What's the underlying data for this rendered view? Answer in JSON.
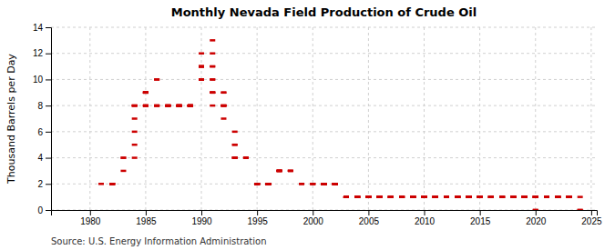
{
  "chart_data": {
    "type": "scatter",
    "title": "Monthly Nevada Field Production of Crude Oil",
    "ylabel": "Thousand Barrels per Day",
    "source": "Source: U.S. Energy Information Administration",
    "color": "#cc0000",
    "marker": "hline",
    "grid": true,
    "xlim": [
      1976.5,
      2025.5
    ],
    "ylim": [
      0,
      14
    ],
    "xticks": [
      1980,
      1985,
      1990,
      1995,
      2000,
      2005,
      2010,
      2015,
      2020,
      2025
    ],
    "yticks": [
      0,
      2,
      4,
      6,
      8,
      10,
      12,
      14
    ],
    "x": [
      1981,
      1982,
      1982,
      1982,
      1982,
      1982,
      1982,
      1983,
      1983,
      1983,
      1984,
      1984,
      1984,
      1984,
      1984,
      1984,
      1984,
      1984,
      1985,
      1985,
      1985,
      1985,
      1985,
      1985,
      1985,
      1985,
      1985,
      1985,
      1985,
      1985,
      1985,
      1986,
      1986,
      1986,
      1986,
      1986,
      1986,
      1986,
      1987,
      1987,
      1987,
      1987,
      1987,
      1987,
      1987,
      1987,
      1988,
      1988,
      1988,
      1988,
      1988,
      1988,
      1988,
      1988,
      1988,
      1988,
      1988,
      1988,
      1989,
      1989,
      1989,
      1989,
      1989,
      1989,
      1989,
      1989,
      1989,
      1989,
      1989,
      1989,
      1990,
      1990,
      1990,
      1990,
      1990,
      1990,
      1990,
      1990,
      1990,
      1990,
      1990,
      1991,
      1991,
      1991,
      1991,
      1991,
      1991,
      1991,
      1991,
      1991,
      1991,
      1991,
      1992,
      1992,
      1992,
      1992,
      1992,
      1992,
      1992,
      1992,
      1993,
      1993,
      1993,
      1993,
      1993,
      1993,
      1993,
      1994,
      1994,
      1994,
      1994,
      1995,
      1995,
      1995,
      1995,
      1995,
      1995,
      1995,
      1995,
      1995,
      1995,
      1995,
      1995,
      1996,
      1996,
      1996,
      1996,
      1996,
      1996,
      1996,
      1996,
      1996,
      1996,
      1996,
      1996,
      1997,
      1997,
      1997,
      1997,
      1997,
      1997,
      1998,
      1998,
      1998,
      1999,
      1999,
      2000,
      2000,
      2000,
      2001,
      2001,
      2001,
      2001,
      2001,
      2001,
      2001,
      2001,
      2001,
      2001,
      2001,
      2001,
      2002,
      2002,
      2002,
      2002,
      2002,
      2002,
      2002,
      2002,
      2002,
      2002,
      2002,
      2002,
      2003,
      2003,
      2003,
      2003,
      2003,
      2003,
      2003,
      2003,
      2003,
      2003,
      2003,
      2003,
      2004,
      2004,
      2004,
      2004,
      2004,
      2004,
      2004,
      2004,
      2004,
      2004,
      2004,
      2004,
      2005,
      2005,
      2005,
      2005,
      2005,
      2005,
      2005,
      2005,
      2005,
      2005,
      2005,
      2005,
      2006,
      2006,
      2006,
      2006,
      2006,
      2006,
      2006,
      2006,
      2006,
      2006,
      2006,
      2006,
      2007,
      2007,
      2007,
      2007,
      2007,
      2007,
      2007,
      2007,
      2007,
      2007,
      2007,
      2007,
      2008,
      2008,
      2008,
      2008,
      2008,
      2008,
      2008,
      2008,
      2008,
      2008,
      2008,
      2008,
      2009,
      2009,
      2009,
      2009,
      2009,
      2009,
      2009,
      2009,
      2009,
      2009,
      2009,
      2009,
      2010,
      2010,
      2010,
      2010,
      2010,
      2010,
      2010,
      2010,
      2010,
      2010,
      2010,
      2010,
      2011,
      2011,
      2011,
      2011,
      2011,
      2011,
      2011,
      2011,
      2011,
      2011,
      2011,
      2011,
      2012,
      2012,
      2012,
      2012,
      2012,
      2012,
      2012,
      2012,
      2012,
      2012,
      2012,
      2012,
      2013,
      2013,
      2013,
      2013,
      2013,
      2013,
      2013,
      2013,
      2013,
      2013,
      2013,
      2013,
      2014,
      2014,
      2014,
      2014,
      2014,
      2014,
      2014,
      2014,
      2014,
      2014,
      2014,
      2014,
      2015,
      2015,
      2015,
      2015,
      2015,
      2015,
      2015,
      2015,
      2015,
      2015,
      2015,
      2015,
      2016,
      2016,
      2016,
      2016,
      2016,
      2016,
      2016,
      2016,
      2016,
      2016,
      2016,
      2016,
      2017,
      2017,
      2017,
      2017,
      2017,
      2017,
      2017,
      2017,
      2017,
      2017,
      2017,
      2017,
      2018,
      2018,
      2018,
      2018,
      2018,
      2018,
      2018,
      2018,
      2018,
      2018,
      2018,
      2018,
      2019,
      2019,
      2019,
      2019,
      2019,
      2019,
      2019,
      2019,
      2019,
      2019,
      2019,
      2019,
      2020,
      2020,
      2020,
      2020,
      2020,
      2020,
      2020,
      2020,
      2020,
      2020,
      2020,
      2021,
      2021,
      2021,
      2021,
      2021,
      2021,
      2021,
      2021,
      2021,
      2021,
      2021,
      2021,
      2022,
      2022,
      2022,
      2022,
      2022,
      2022,
      2022,
      2022,
      2022,
      2022,
      2022,
      2022,
      2023,
      2023,
      2023,
      2023,
      2023,
      2023,
      2023,
      2023,
      2023,
      2023,
      2023,
      2023,
      2024,
      2024,
      2024
    ],
    "values": [
      2,
      2,
      2,
      2,
      2,
      2,
      2,
      4,
      3,
      4,
      8,
      8,
      8,
      8,
      7,
      6,
      5,
      4,
      9,
      9,
      9,
      9,
      9,
      9,
      9,
      8,
      8,
      8,
      8,
      8,
      8,
      8,
      8,
      8,
      8,
      8,
      10,
      10,
      8,
      8,
      8,
      8,
      8,
      8,
      8,
      8,
      8,
      8,
      8,
      8,
      8,
      8,
      8,
      8,
      8,
      8,
      8,
      8,
      8,
      8,
      8,
      8,
      8,
      8,
      8,
      8,
      8,
      8,
      8,
      8,
      10,
      10,
      11,
      11,
      12,
      11,
      11,
      11,
      11,
      10,
      10,
      11,
      13,
      12,
      11,
      10,
      10,
      9,
      9,
      9,
      8,
      9,
      8,
      8,
      9,
      9,
      8,
      8,
      8,
      7,
      6,
      5,
      5,
      4,
      4,
      4,
      4,
      4,
      4,
      4,
      4,
      2,
      2,
      2,
      2,
      2,
      2,
      2,
      2,
      2,
      2,
      2,
      2,
      2,
      2,
      2,
      2,
      2,
      2,
      2,
      2,
      2,
      2,
      2,
      2,
      3,
      3,
      3,
      3,
      3,
      3,
      3,
      3,
      3,
      2,
      2,
      2,
      2,
      2,
      2,
      2,
      2,
      2,
      2,
      2,
      2,
      2,
      2,
      2,
      2,
      2,
      2,
      2,
      2,
      2,
      2,
      2,
      2,
      2,
      2,
      2,
      2,
      2,
      1,
      1,
      1,
      1,
      1,
      1,
      1,
      1,
      1,
      1,
      1,
      1,
      1,
      1,
      1,
      1,
      1,
      1,
      1,
      1,
      1,
      1,
      1,
      1,
      1,
      1,
      1,
      1,
      1,
      1,
      1,
      1,
      1,
      1,
      1,
      1,
      1,
      1,
      1,
      1,
      1,
      1,
      1,
      1,
      1,
      1,
      1,
      1,
      1,
      1,
      1,
      1,
      1,
      1,
      1,
      1,
      1,
      1,
      1,
      1,
      1,
      1,
      1,
      1,
      1,
      1,
      1,
      1,
      1,
      1,
      1,
      1,
      1,
      1,
      1,
      1,
      1,
      1,
      1,
      1,
      1,
      1,
      1,
      1,
      1,
      1,
      1,
      1,
      1,
      1,
      1,
      1,
      1,
      1,
      1,
      1,
      1,
      1,
      1,
      1,
      1,
      1,
      1,
      1,
      1,
      1,
      1,
      1,
      1,
      1,
      1,
      1,
      1,
      1,
      1,
      1,
      1,
      1,
      1,
      1,
      1,
      1,
      1,
      1,
      1,
      1,
      1,
      1,
      1,
      1,
      1,
      1,
      1,
      1,
      1,
      1,
      1,
      1,
      1,
      1,
      1,
      1,
      1,
      1,
      1,
      1,
      1,
      1,
      1,
      1,
      1,
      1,
      1,
      1,
      1,
      1,
      1,
      1,
      1,
      1,
      1,
      1,
      1,
      1,
      1,
      1,
      1,
      1,
      1,
      1,
      1,
      1,
      1,
      1,
      1,
      1,
      1,
      1,
      1,
      1,
      1,
      1,
      1,
      1,
      1,
      1,
      1,
      1,
      1,
      1,
      1,
      1,
      1,
      1,
      1,
      1,
      1,
      1,
      1,
      1,
      1,
      1,
      1,
      1,
      1,
      1,
      1,
      1,
      1,
      1,
      1,
      1,
      1,
      0,
      0,
      1,
      1,
      1,
      1,
      1,
      1,
      1,
      1,
      1,
      1,
      1,
      1,
      1,
      1,
      1,
      1,
      1,
      1,
      1,
      1,
      1,
      1,
      1,
      1,
      1,
      1,
      1,
      1,
      1,
      1,
      1,
      1,
      1,
      1,
      1,
      1,
      1,
      0,
      0
    ]
  }
}
